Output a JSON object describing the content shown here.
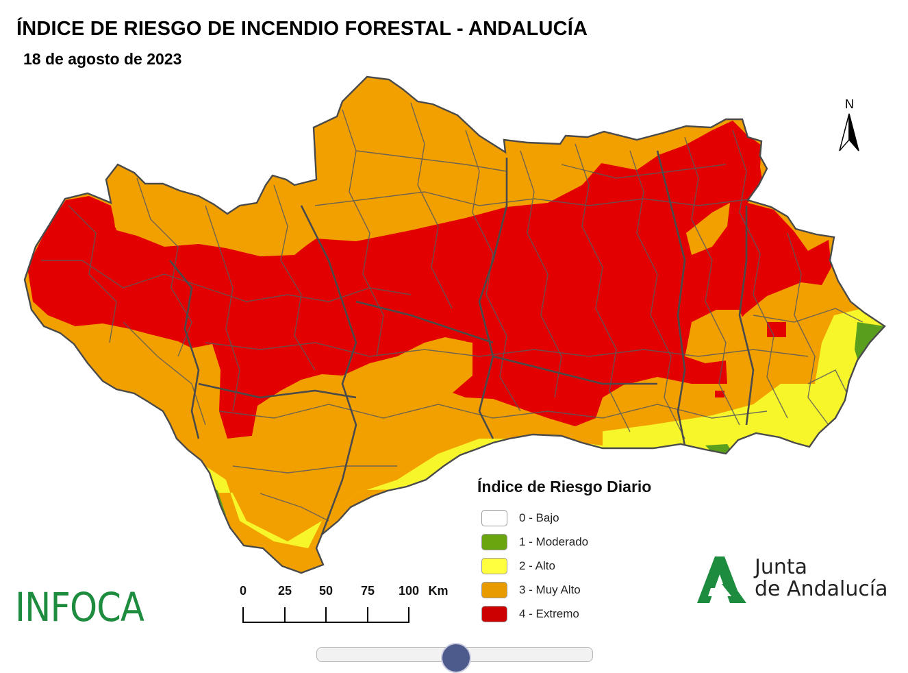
{
  "title": "ÍNDICE DE RIESGO DE INCENDIO FORESTAL - ANDALUCÍA",
  "date": "18 de agosto de 2023",
  "north_label": "N",
  "legend": {
    "title": "Índice de Riesgo Diario",
    "items": [
      {
        "label": "0 - Bajo",
        "color": "#ffffff"
      },
      {
        "label": "1 - Moderado",
        "color": "#6aa40f"
      },
      {
        "label": "2 - Alto",
        "color": "#ffff40"
      },
      {
        "label": "3 - Muy Alto",
        "color": "#e79b00"
      },
      {
        "label": "4 - Extremo",
        "color": "#cc0000"
      }
    ]
  },
  "scale": {
    "labels": [
      "0",
      "25",
      "50",
      "75",
      "100"
    ],
    "unit": "Km"
  },
  "logos": {
    "infoca": "INFOCA",
    "junta_line1": "Junta",
    "junta_line2": "de Andalucía"
  },
  "colors": {
    "extremo": "#e20000",
    "muy_alto": "#f2a000",
    "alto": "#f6f62a",
    "moderado": "#5a9e1e",
    "boundary": "#5a5a5a",
    "brand_green": "#1e8c3f"
  }
}
